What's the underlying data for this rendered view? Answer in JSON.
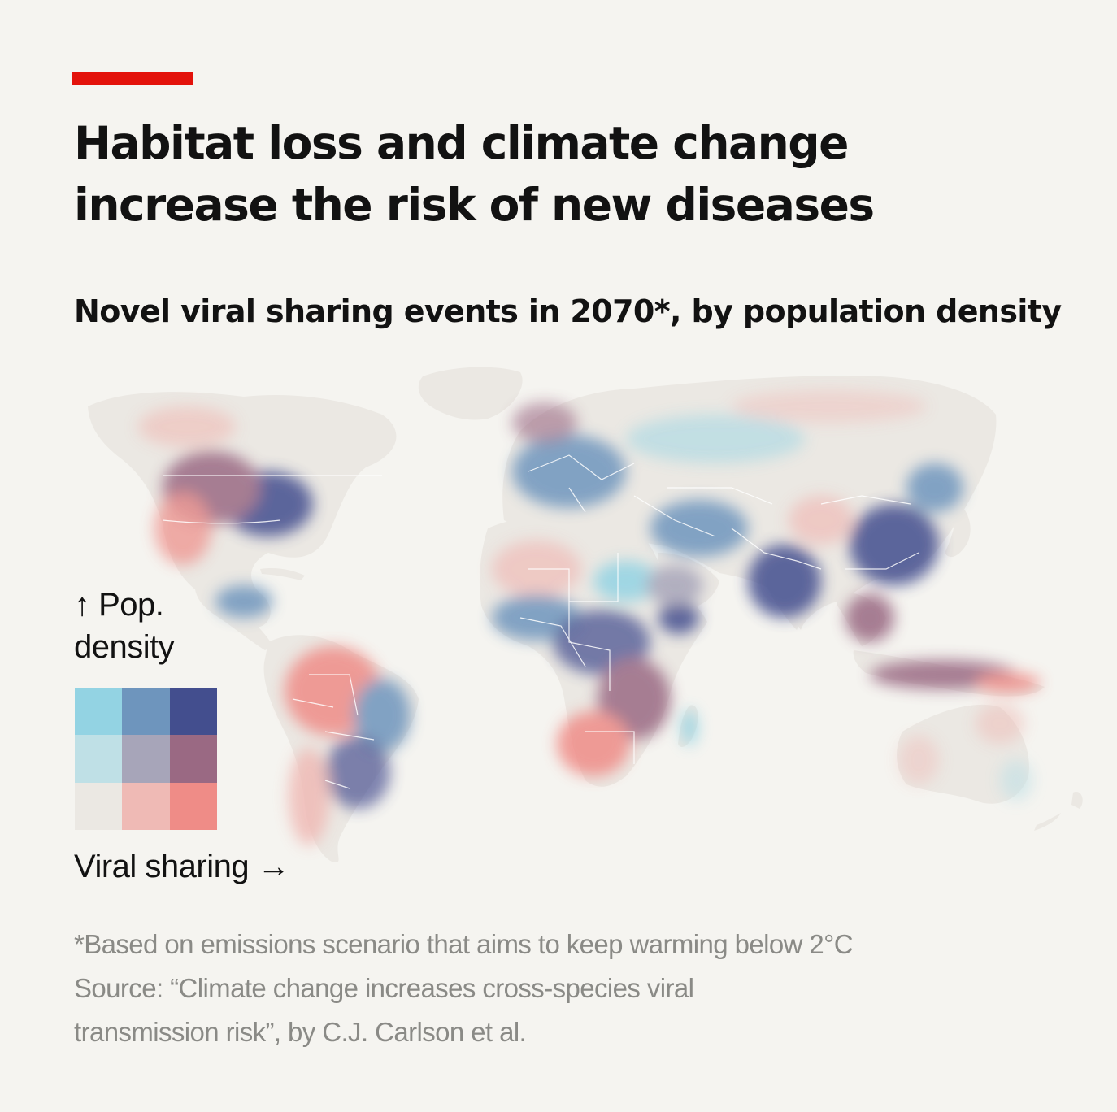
{
  "title_line1": "Habitat loss and climate change",
  "title_line2": "increase the risk of new diseases",
  "subtitle": "Novel viral sharing events in 2070*, by population density",
  "legend": {
    "y_arrow": "↑",
    "y_label_line1": "Pop.",
    "y_label_line2": "density",
    "x_label": "Viral sharing",
    "x_arrow": "→",
    "colors": [
      [
        "#93d3e3",
        "#6e95bd",
        "#434e8e"
      ],
      [
        "#bfe0e6",
        "#a7a5b9",
        "#9a6983"
      ],
      [
        "#ebe8e3",
        "#efbab5",
        "#ef8c87"
      ]
    ]
  },
  "footnote": "*Based on emissions scenario that aims to keep warming below 2°C",
  "source_line1": "Source: “Climate change increases cross-species viral",
  "source_line2": "transmission risk”, by C.J. Carlson et al.",
  "colors": {
    "accent": "#e3120b",
    "background": "#f5f4f0",
    "land_base": "#ebe8e3",
    "text_muted": "#8a8a86"
  }
}
